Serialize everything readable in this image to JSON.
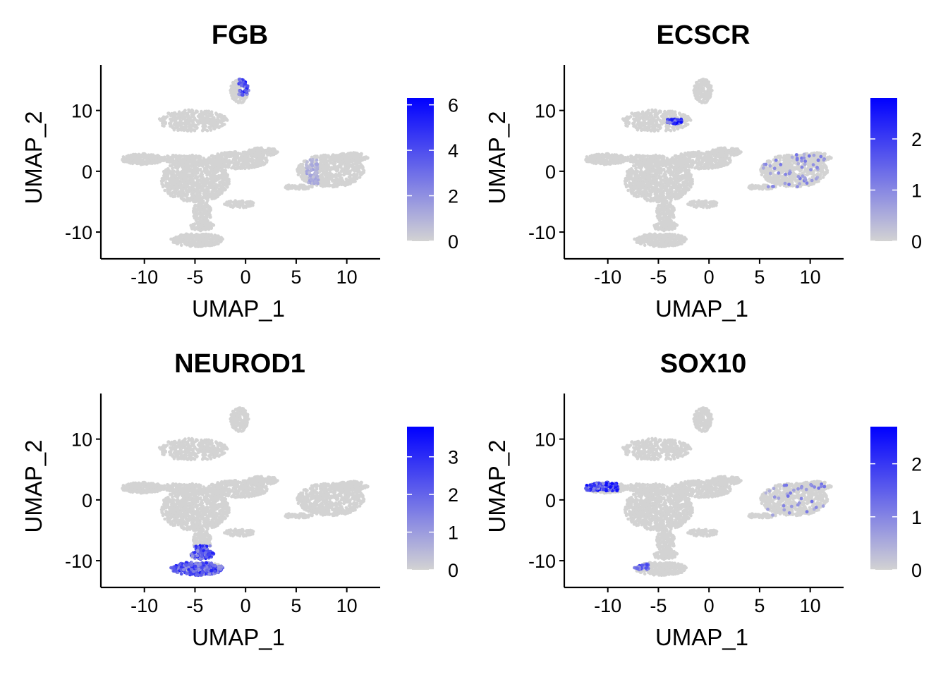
{
  "chart_data": [
    {
      "type": "scatter",
      "title": "FGB",
      "xlabel": "UMAP_1",
      "ylabel": "UMAP_2",
      "xlim": [
        -14.3,
        13.3
      ],
      "ylim": [
        -14.4,
        17.5
      ],
      "xticks": [
        -10,
        -5,
        0,
        5,
        10
      ],
      "xtick_labels": [
        "-10",
        "-5",
        "0",
        "5",
        "10"
      ],
      "yticks": [
        -10,
        0,
        10
      ],
      "ytick_labels": [
        "-10",
        "0",
        "10"
      ],
      "grid": false,
      "legend": {
        "position": "right",
        "type": "colorbar",
        "min": 0,
        "max": 6.3,
        "ticks": [
          0,
          2,
          4,
          6
        ],
        "tick_labels": [
          "0",
          "2",
          "4",
          "6"
        ],
        "low_color": "#D3D3D3",
        "high_color": "#0000FF"
      },
      "expressing_regions": [
        {
          "cluster": "top-spike",
          "x": [
            -0.7,
            0.3
          ],
          "y": [
            12.5,
            15.4
          ],
          "value": 4.5
        },
        {
          "cluster": "right-blob",
          "x": [
            6.0,
            7.2
          ],
          "y": [
            -2.0,
            2.0
          ],
          "value": 1.2
        }
      ]
    },
    {
      "type": "scatter",
      "title": "ECSCR",
      "xlabel": "UMAP_1",
      "ylabel": "UMAP_2",
      "xlim": [
        -14.3,
        13.3
      ],
      "ylim": [
        -14.4,
        17.5
      ],
      "xticks": [
        -10,
        -5,
        0,
        5,
        10
      ],
      "xtick_labels": [
        "-10",
        "-5",
        "0",
        "5",
        "10"
      ],
      "yticks": [
        -10,
        0,
        10
      ],
      "ytick_labels": [
        "-10",
        "0",
        "10"
      ],
      "grid": false,
      "legend": {
        "position": "right",
        "type": "colorbar",
        "min": 0,
        "max": 2.8,
        "ticks": [
          0,
          1,
          2
        ],
        "tick_labels": [
          "0",
          "1",
          "2"
        ],
        "low_color": "#D3D3D3",
        "high_color": "#0000FF"
      },
      "expressing_regions": [
        {
          "cluster": "upper-left-tail",
          "x": [
            -4.2,
            -2.6
          ],
          "y": [
            7.8,
            8.6
          ],
          "value": 2.2
        },
        {
          "cluster": "right-blob",
          "x": [
            5.0,
            11.5
          ],
          "y": [
            -4.0,
            3.0
          ],
          "value": 1.0
        }
      ]
    },
    {
      "type": "scatter",
      "title": "NEUROD1",
      "xlabel": "UMAP_1",
      "ylabel": "UMAP_2",
      "xlim": [
        -14.3,
        13.3
      ],
      "ylim": [
        -14.4,
        17.5
      ],
      "xticks": [
        -10,
        -5,
        0,
        5,
        10
      ],
      "xtick_labels": [
        "-10",
        "-5",
        "0",
        "5",
        "10"
      ],
      "yticks": [
        -10,
        0,
        10
      ],
      "ytick_labels": [
        "-10",
        "0",
        "10"
      ],
      "grid": false,
      "legend": {
        "position": "right",
        "type": "colorbar",
        "min": 0,
        "max": 3.8,
        "ticks": [
          0,
          1,
          2,
          3
        ],
        "tick_labels": [
          "0",
          "1",
          "2",
          "3"
        ],
        "low_color": "#D3D3D3",
        "high_color": "#0000FF"
      },
      "expressing_regions": [
        {
          "cluster": "bottom-cluster",
          "x": [
            -7.5,
            -2.0
          ],
          "y": [
            -12.6,
            -7.5
          ],
          "value": 2.6
        }
      ]
    },
    {
      "type": "scatter",
      "title": "SOX10",
      "xlabel": "UMAP_1",
      "ylabel": "UMAP_2",
      "xlim": [
        -14.3,
        13.3
      ],
      "ylim": [
        -14.4,
        17.5
      ],
      "xticks": [
        -10,
        -5,
        0,
        5,
        10
      ],
      "xtick_labels": [
        "-10",
        "-5",
        "0",
        "5",
        "10"
      ],
      "yticks": [
        -10,
        0,
        10
      ],
      "ytick_labels": [
        "-10",
        "0",
        "10"
      ],
      "grid": false,
      "legend": {
        "position": "right",
        "type": "colorbar",
        "min": 0,
        "max": 2.7,
        "ticks": [
          0,
          1,
          2
        ],
        "tick_labels": [
          "0",
          "1",
          "2"
        ],
        "low_color": "#D3D3D3",
        "high_color": "#0000FF"
      },
      "expressing_regions": [
        {
          "cluster": "left-tip",
          "x": [
            -12.5,
            -9.0
          ],
          "y": [
            1.5,
            3.5
          ],
          "value": 2.0
        },
        {
          "cluster": "bottom-cluster",
          "x": [
            -7.5,
            -6.0
          ],
          "y": [
            -11.5,
            -10.5
          ],
          "value": 1.5
        },
        {
          "cluster": "right-blob",
          "x": [
            5.0,
            11.5
          ],
          "y": [
            -4.0,
            3.0
          ],
          "value": 1.0
        }
      ]
    }
  ]
}
